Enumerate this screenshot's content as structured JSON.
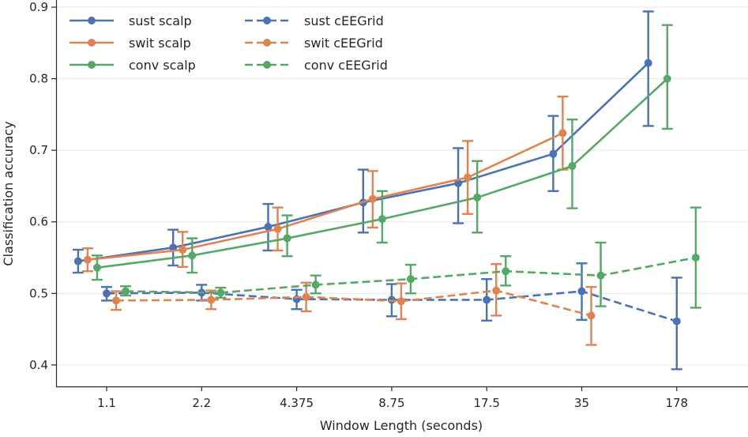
{
  "chart_data": {
    "type": "line",
    "title": "",
    "xlabel": "Window Length (seconds)",
    "ylabel": "Classification accuracy",
    "categories": [
      "1.1",
      "2.2",
      "4.375",
      "8.75",
      "17.5",
      "35",
      "178"
    ],
    "ylim": [
      0.37,
      0.91
    ],
    "yticks": [
      0.4,
      0.5,
      0.6,
      0.7,
      0.8,
      0.9
    ],
    "ytick_labels": [
      "0.4",
      "0.5",
      "0.6",
      "0.7",
      "0.8",
      "0.9"
    ],
    "grid": "horizontal",
    "legend_position": "top-left",
    "series": [
      {
        "name": "sust scalp",
        "color": "#4c72b0",
        "linestyle": "solid",
        "offset": -0.3,
        "values": [
          0.545,
          0.564,
          0.593,
          0.627,
          0.654,
          0.695,
          0.822
        ],
        "err_low": [
          0.529,
          0.539,
          0.56,
          0.585,
          0.598,
          0.643,
          0.734
        ],
        "err_high": [
          0.561,
          0.589,
          0.625,
          0.673,
          0.703,
          0.748,
          0.894
        ]
      },
      {
        "name": "swit scalp",
        "color": "#dd8452",
        "linestyle": "solid",
        "offset": -0.2,
        "values": [
          0.547,
          0.561,
          0.59,
          0.632,
          0.662,
          0.724,
          null
        ],
        "err_low": [
          0.531,
          0.537,
          0.56,
          0.592,
          0.611,
          0.673,
          null
        ],
        "err_high": [
          0.563,
          0.586,
          0.62,
          0.671,
          0.713,
          0.775,
          null
        ]
      },
      {
        "name": "conv scalp",
        "color": "#55a868",
        "linestyle": "solid",
        "offset": -0.1,
        "values": [
          0.536,
          0.553,
          0.577,
          0.604,
          0.634,
          0.678,
          0.8
        ],
        "err_low": [
          0.519,
          0.529,
          0.552,
          0.571,
          0.585,
          0.619,
          0.73
        ],
        "err_high": [
          0.553,
          0.577,
          0.609,
          0.643,
          0.685,
          0.743,
          0.875
        ]
      },
      {
        "name": "sust cEEGrid",
        "color": "#4c72b0",
        "linestyle": "dashed",
        "offset": 0.0,
        "values": [
          0.5,
          0.501,
          0.492,
          0.491,
          0.491,
          0.503,
          0.461
        ],
        "err_low": [
          0.49,
          0.49,
          0.478,
          0.468,
          0.462,
          0.463,
          0.394
        ],
        "err_high": [
          0.509,
          0.512,
          0.505,
          0.513,
          0.52,
          0.542,
          0.522
        ]
      },
      {
        "name": "swit cEEGrid",
        "color": "#dd8452",
        "linestyle": "dashed",
        "offset": 0.1,
        "values": [
          0.49,
          0.491,
          0.495,
          0.489,
          0.504,
          0.469,
          null
        ],
        "err_low": [
          0.477,
          0.478,
          0.475,
          0.464,
          0.469,
          0.428,
          null
        ],
        "err_high": [
          0.503,
          0.504,
          0.515,
          0.514,
          0.541,
          0.509,
          null
        ]
      },
      {
        "name": "conv cEEGrid",
        "color": "#55a868",
        "linestyle": "dashed",
        "offset": 0.2,
        "values": [
          0.503,
          0.501,
          0.512,
          0.52,
          0.531,
          0.525,
          0.55
        ],
        "err_low": [
          0.497,
          0.494,
          0.5,
          0.5,
          0.511,
          0.482,
          0.48
        ],
        "err_high": [
          0.51,
          0.508,
          0.525,
          0.54,
          0.552,
          0.571,
          0.62
        ]
      }
    ]
  }
}
